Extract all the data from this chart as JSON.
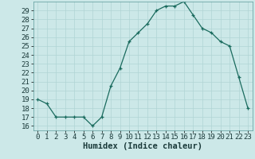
{
  "x": [
    0,
    1,
    2,
    3,
    4,
    5,
    6,
    7,
    8,
    9,
    10,
    11,
    12,
    13,
    14,
    15,
    16,
    17,
    18,
    19,
    20,
    21,
    22,
    23
  ],
  "y": [
    19,
    18.5,
    17,
    17,
    17,
    17,
    16,
    17,
    20.5,
    22.5,
    25.5,
    26.5,
    27.5,
    29,
    29.5,
    29.5,
    30,
    28.5,
    27,
    26.5,
    25.5,
    25,
    21.5,
    18
  ],
  "xlabel": "Humidex (Indice chaleur)",
  "xlim": [
    -0.5,
    23.5
  ],
  "ylim": [
    15.5,
    30.0
  ],
  "yticks": [
    16,
    17,
    18,
    19,
    20,
    21,
    22,
    23,
    24,
    25,
    26,
    27,
    28,
    29
  ],
  "xticks": [
    0,
    1,
    2,
    3,
    4,
    5,
    6,
    7,
    8,
    9,
    10,
    11,
    12,
    13,
    14,
    15,
    16,
    17,
    18,
    19,
    20,
    21,
    22,
    23
  ],
  "line_color": "#1a6b5e",
  "marker_color": "#1a6b5e",
  "bg_color": "#cce8e8",
  "grid_color": "#b0d4d4",
  "xlabel_fontsize": 7.5,
  "tick_fontsize": 6.5
}
